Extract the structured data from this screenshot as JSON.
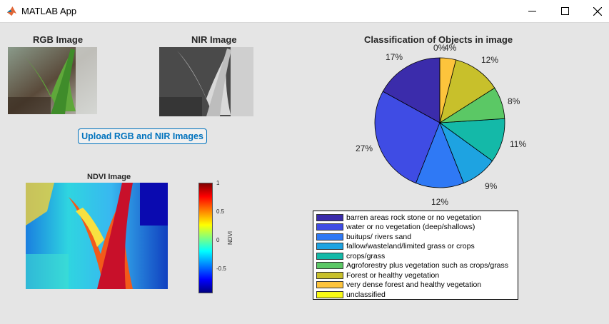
{
  "window": {
    "title": "MATLAB App",
    "minimize": "—",
    "maximize": "☐",
    "close": "✕"
  },
  "panels": {
    "rgb_title": "RGB Image",
    "nir_title": "NIR Image",
    "ndvi_title": "NDVI Image",
    "upload_label": "Upload RGB  and NIR Images"
  },
  "colorbar": {
    "label": "NDVI",
    "ticks": [
      "1",
      "0.5",
      "0",
      "-0.5"
    ]
  },
  "chart_data": {
    "type": "pie",
    "title": "Classification of Objects in image",
    "categories": [
      "barren areas rock stone or no vegetation",
      "water or no vegetation (deep/shallows)",
      "buitups/ rivers sand",
      "fallow/wasteland/limited grass or crops",
      "crops/grass",
      "Agroforestry plus  vegetation such as crops/grass",
      "Forest or healthy vegetation",
      "very dense forest and healthy vegetation",
      "unclassified"
    ],
    "values": [
      17,
      27,
      12,
      9,
      11,
      8,
      12,
      4,
      0
    ],
    "value_labels": [
      "17%",
      "27%",
      "12%",
      "9%",
      "11%",
      "8%",
      "12%",
      "4%",
      "0%"
    ],
    "colors": [
      "#3b2cab",
      "#3f4ce4",
      "#2f79f5",
      "#1ea3e1",
      "#14b9a8",
      "#5bc865",
      "#c8c02b",
      "#fdc43c",
      "#f9fa14"
    ],
    "legend_placement": "bottom"
  }
}
